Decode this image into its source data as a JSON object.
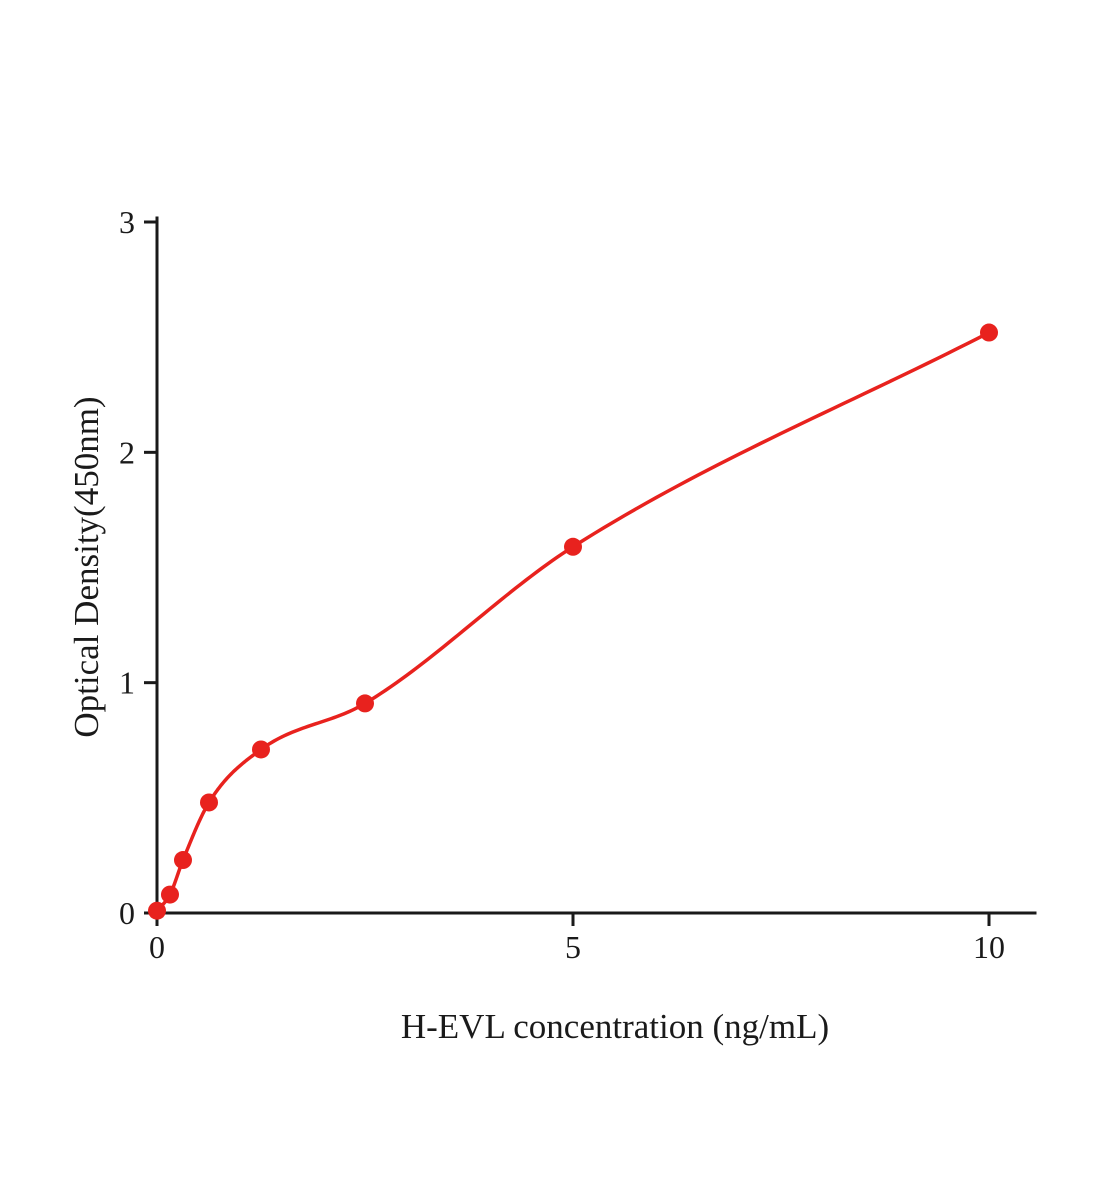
{
  "chart_data": {
    "type": "scatter",
    "title": "",
    "xlabel": "H-EVL concentration (ng/mL)",
    "ylabel": "Optical Density(450nm)",
    "x": [
      0,
      0.156,
      0.3125,
      0.625,
      1.25,
      2.5,
      5,
      10
    ],
    "y": [
      0.01,
      0.08,
      0.23,
      0.48,
      0.71,
      0.91,
      1.59,
      2.52
    ],
    "xlim": [
      0,
      10.55
    ],
    "ylim": [
      0,
      3
    ],
    "xticks": [
      0,
      5,
      10
    ],
    "yticks": [
      0,
      1,
      2,
      3
    ],
    "legend": "none",
    "grid": false,
    "curve": "smooth fit through standard points",
    "point_color": "#e8221e",
    "curve_color": "#e8221e",
    "axis_color": "#1a1a1a"
  }
}
